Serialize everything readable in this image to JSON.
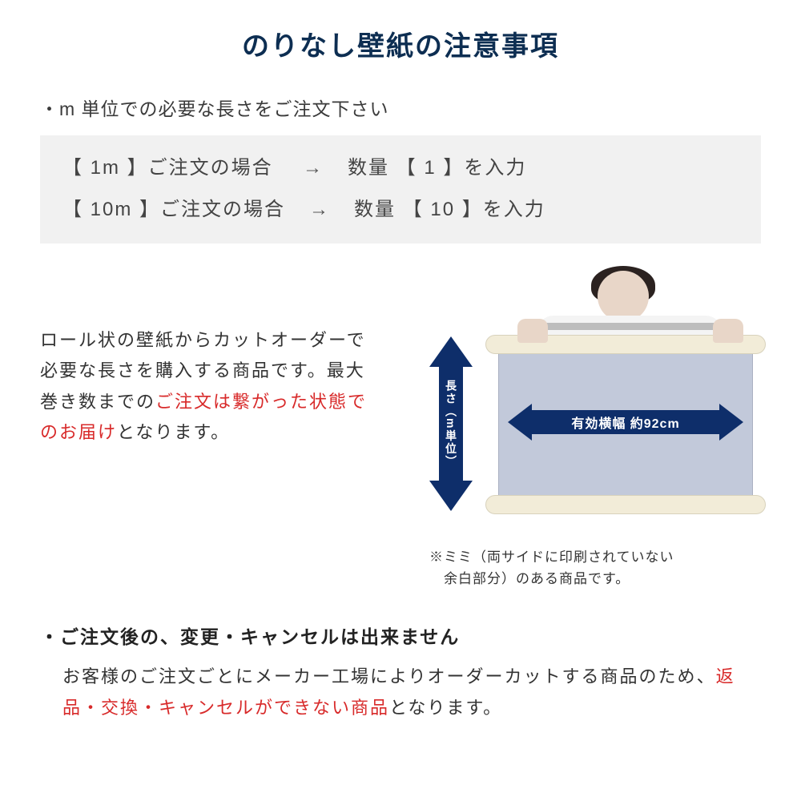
{
  "colors": {
    "title": "#0d2e52",
    "text": "#333333",
    "red": "#d82a2a",
    "arrow": "#0e2e6a",
    "example_bg": "#f1f1f1",
    "sheet": "#c2c9da",
    "roll": "#f2ecd8",
    "background": "#ffffff"
  },
  "title": "のりなし壁紙の注意事項",
  "bullet1": "・m 単位での必要な長さをご注文下さい",
  "examples": [
    {
      "left": "【 1m 】ご注文の場合",
      "arrow": "→",
      "right": "数量 【 1 】を入力"
    },
    {
      "left": "【 10m 】ご注文の場合",
      "arrow": "→",
      "right": "数量 【 10 】を入力"
    }
  ],
  "desc_parts": {
    "p1": "ロール状の壁紙からカットオーダーで必要な長さを購入する商品です。最大巻き数までの",
    "p2_red": "ご注文は繋がった状態でのお届け",
    "p3": "となります。"
  },
  "diagram": {
    "v_label": "長さ（m単位）",
    "h_label": "有効横幅 約92cm",
    "mimi_note1": "※ミミ（両サイドに印刷されていない",
    "mimi_note2": "　余白部分）のある商品です。"
  },
  "bullet2": "・ご注文後の、変更・キャンセルは出来ません",
  "cancel_parts": {
    "p1": "お客様のご注文ごとにメーカー工場によりオーダーカットする商品のため、",
    "p2_red": "返品・交換・キャンセルができない商品",
    "p3": "となります。"
  }
}
